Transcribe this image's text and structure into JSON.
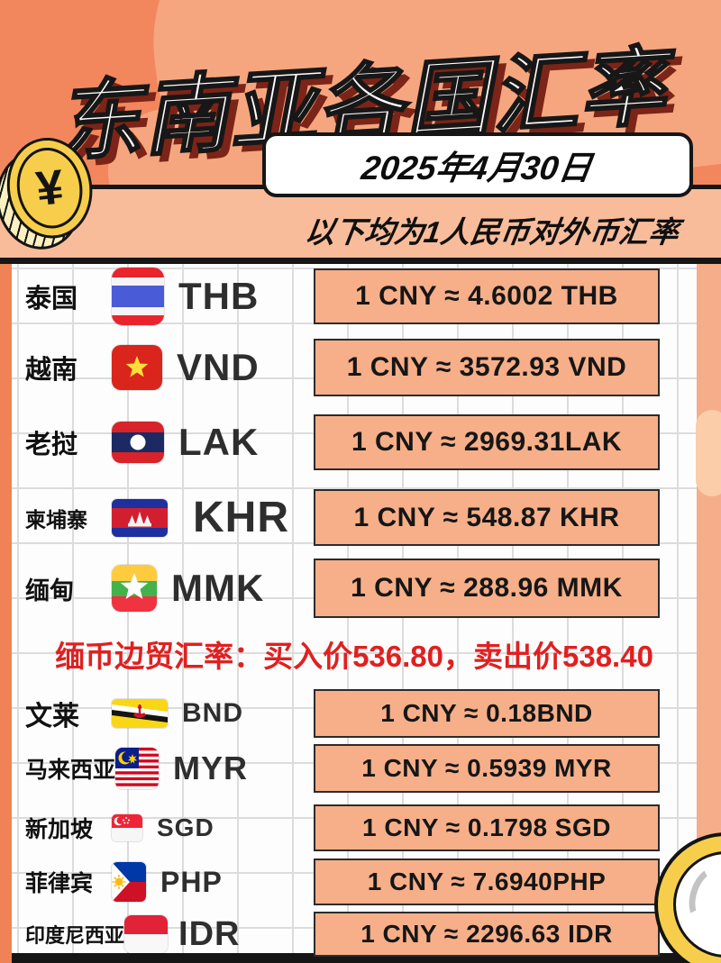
{
  "poster": {
    "title": "东南亚各国汇率",
    "date": "2025年4月30日",
    "subtitle": "以下均为1人民币对外币汇率",
    "coin_symbol": "¥",
    "note": {
      "p1": "缅币",
      "p2": "边贸",
      "p3": "汇率：买入价536.80，卖出价538.40"
    }
  },
  "rates": {
    "rows": [
      {
        "country": "泰国",
        "code": "THB",
        "rate": "1 CNY ≈ 4.6002 THB",
        "flag": "thailand"
      },
      {
        "country": "越南",
        "code": "VND",
        "rate": "1 CNY ≈ 3572.93 VND",
        "flag": "vietnam"
      },
      {
        "country": "老挝",
        "code": "LAK",
        "rate": "1 CNY ≈ 2969.31LAK",
        "flag": "laos"
      },
      {
        "country": "柬埔寨",
        "code": "KHR",
        "rate": "1 CNY ≈ 548.87 KHR",
        "flag": "cambodia"
      },
      {
        "country": "缅甸",
        "code": "MMK",
        "rate": "1 CNY ≈ 288.96 MMK",
        "flag": "myanmar"
      },
      {
        "country": "文莱",
        "code": "BND",
        "rate": "1 CNY ≈ 0.18BND",
        "flag": "brunei"
      },
      {
        "country": "马来西亚",
        "code": "MYR",
        "rate": "1 CNY ≈ 0.5939 MYR",
        "flag": "malaysia"
      },
      {
        "country": "新加坡",
        "code": "SGD",
        "rate": "1 CNY ≈ 0.1798 SGD",
        "flag": "singapore"
      },
      {
        "country": "菲律宾",
        "code": "PHP",
        "rate": "1 CNY ≈ 7.6940PHP",
        "flag": "philippines"
      },
      {
        "country": "印度尼西亚",
        "code": "IDR",
        "rate": "1 CNY ≈ 2296.63 IDR",
        "flag": "indonesia"
      }
    ]
  },
  "colors": {
    "background": "#F2875D",
    "band": "#F9BC9A",
    "rate_box": "#F6AF89",
    "note_red": "#E02020",
    "coin_gold": "#F6CE4B",
    "title_shadow": "#7C2417"
  }
}
